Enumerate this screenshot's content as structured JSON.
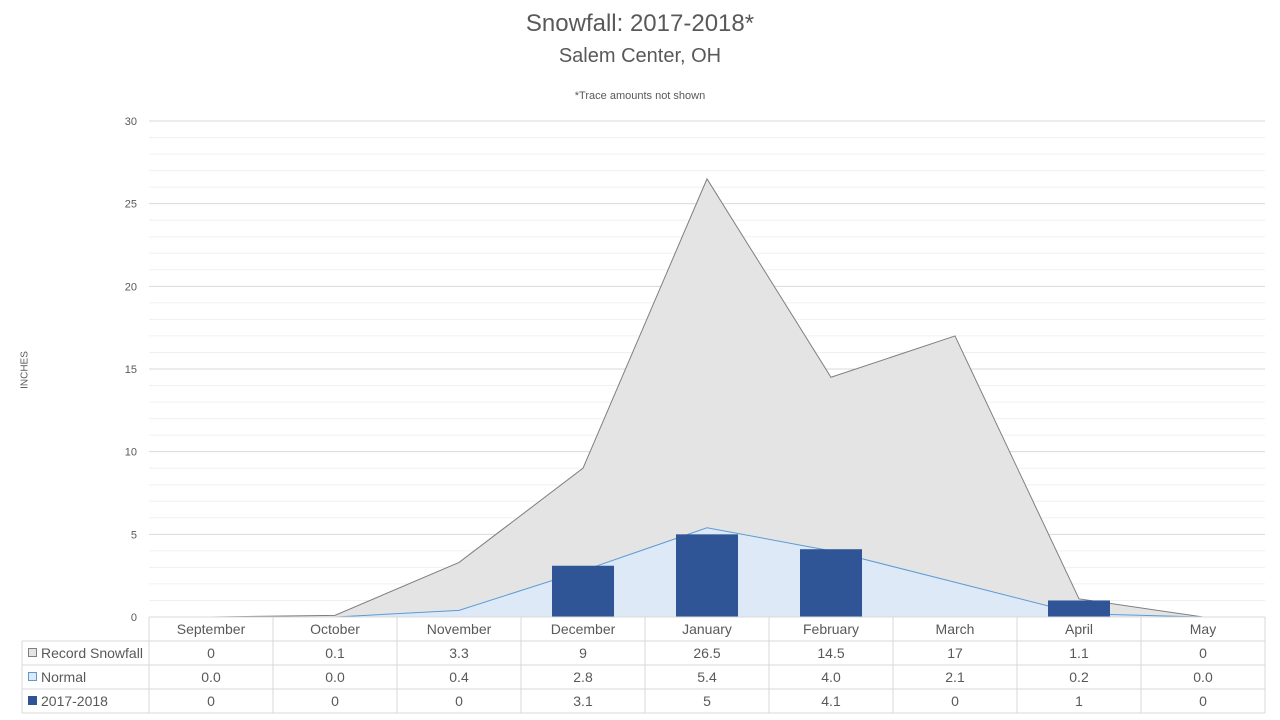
{
  "chart_data": {
    "type": "area",
    "title": "Snowfall: 2017-2018*",
    "subtitle": "Salem Center, OH",
    "note": "*Trace amounts not shown",
    "ylabel": "INCHES",
    "ylim": [
      0,
      30
    ],
    "yticks": [
      0,
      5,
      10,
      15,
      20,
      25,
      30
    ],
    "grid": true,
    "categories": [
      "September",
      "October",
      "November",
      "December",
      "January",
      "February",
      "March",
      "April",
      "May"
    ],
    "series": [
      {
        "name": "Record Snowfall",
        "kind": "area",
        "color": "#e4e4e4",
        "stroke": "#7f7f7f",
        "values": [
          0,
          0.1,
          3.3,
          9,
          26.5,
          14.5,
          17,
          1.1,
          0
        ],
        "labels": [
          "0",
          "0.1",
          "3.3",
          "9",
          "26.5",
          "14.5",
          "17",
          "1.1",
          "0"
        ]
      },
      {
        "name": "Normal",
        "kind": "area",
        "color": "#dde9f6",
        "stroke": "#5b9bd5",
        "values": [
          0.0,
          0.0,
          0.4,
          2.8,
          5.4,
          4.0,
          2.1,
          0.2,
          0.0
        ],
        "labels": [
          "0.0",
          "0.0",
          "0.4",
          "2.8",
          "5.4",
          "4.0",
          "2.1",
          "0.2",
          "0.0"
        ]
      },
      {
        "name": "2017-2018",
        "kind": "bar",
        "color": "#2f5597",
        "values": [
          0,
          0,
          0,
          3.1,
          5,
          4.1,
          0,
          1,
          0
        ],
        "labels": [
          "0",
          "0",
          "0",
          "3.1",
          "5",
          "4.1",
          "0",
          "1",
          "0"
        ]
      }
    ]
  }
}
